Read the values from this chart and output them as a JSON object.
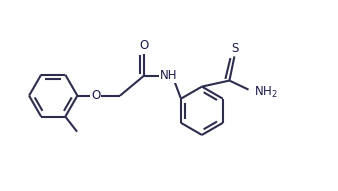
{
  "bg_color": "#ffffff",
  "line_color": "#2d2d4e",
  "atom_color": "#1a1a4e",
  "line_width": 1.5,
  "font_size": 8.5,
  "figsize": [
    3.38,
    1.91
  ],
  "dpi": 100,
  "xlim": [
    0,
    10
  ],
  "ylim": [
    0,
    5.65
  ]
}
